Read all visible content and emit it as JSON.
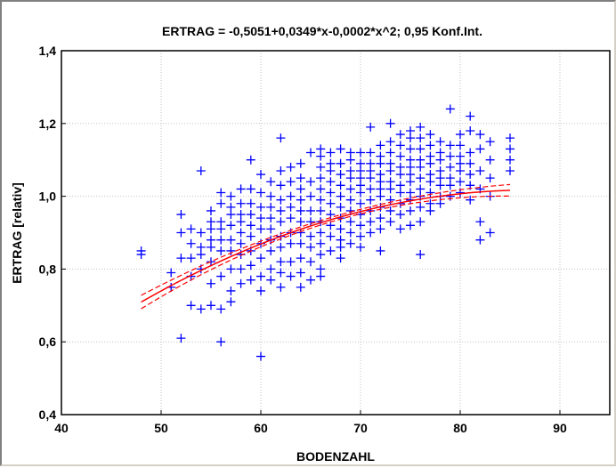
{
  "chart_data": {
    "type": "scatter",
    "title": "ERTRAG = -0,5051+0,0349*x-0,0002*x^2; 0,95 Konf.Int.",
    "xlabel": "BODENZAHL",
    "ylabel": "ERTRAG [relativ]",
    "xlim": [
      40,
      95
    ],
    "ylim": [
      0.4,
      1.4
    ],
    "x_ticks": [
      40,
      50,
      60,
      70,
      80,
      90
    ],
    "x_tick_labels": [
      "40",
      "50",
      "60",
      "70",
      "80",
      "90"
    ],
    "y_ticks": [
      0.4,
      0.6,
      0.8,
      1.0,
      1.2,
      1.4
    ],
    "y_tick_labels": [
      "0,4",
      "0,6",
      "0,8",
      "1,0",
      "1,2",
      "1,4"
    ],
    "grid": true,
    "marker": "+",
    "colors": {
      "points": "#0000ff",
      "fit": "#ff0000",
      "grid": "#c0c0c0"
    },
    "series": [
      {
        "kind": "points",
        "x": [
          48,
          48,
          51,
          51,
          52,
          52,
          52,
          52,
          53,
          53,
          53,
          53,
          53,
          54,
          54,
          54,
          54,
          54,
          54,
          55,
          55,
          55,
          55,
          55,
          55,
          55,
          55,
          56,
          56,
          56,
          56,
          56,
          56,
          56,
          56,
          56,
          57,
          57,
          57,
          57,
          57,
          57,
          57,
          57,
          57,
          58,
          58,
          58,
          58,
          58,
          58,
          58,
          58,
          58,
          59,
          59,
          59,
          59,
          59,
          59,
          59,
          59,
          59,
          60,
          60,
          60,
          60,
          60,
          60,
          60,
          60,
          60,
          60,
          61,
          61,
          61,
          61,
          61,
          61,
          61,
          61,
          61,
          62,
          62,
          62,
          62,
          62,
          62,
          62,
          62,
          62,
          62,
          62,
          63,
          63,
          63,
          63,
          63,
          63,
          63,
          63,
          63,
          64,
          64,
          64,
          64,
          64,
          64,
          64,
          64,
          64,
          64,
          64,
          65,
          65,
          65,
          65,
          65,
          65,
          65,
          65,
          65,
          66,
          66,
          66,
          66,
          66,
          66,
          66,
          66,
          66,
          66,
          66,
          66,
          66,
          67,
          67,
          67,
          67,
          67,
          67,
          67,
          67,
          67,
          67,
          68,
          68,
          68,
          68,
          68,
          68,
          68,
          68,
          68,
          68,
          68,
          69,
          69,
          69,
          69,
          69,
          69,
          69,
          69,
          69,
          69,
          70,
          70,
          70,
          70,
          70,
          70,
          70,
          70,
          70,
          70,
          70,
          71,
          71,
          71,
          71,
          71,
          71,
          71,
          71,
          71,
          71,
          72,
          72,
          72,
          72,
          72,
          72,
          72,
          72,
          72,
          72,
          72,
          73,
          73,
          73,
          73,
          73,
          73,
          73,
          73,
          73,
          73,
          74,
          74,
          74,
          74,
          74,
          74,
          74,
          74,
          74,
          74,
          75,
          75,
          75,
          75,
          75,
          75,
          75,
          75,
          75,
          75,
          75,
          76,
          76,
          76,
          76,
          76,
          76,
          76,
          76,
          76,
          76,
          76,
          77,
          77,
          77,
          77,
          77,
          77,
          77,
          77,
          77,
          78,
          78,
          78,
          78,
          78,
          78,
          78,
          78,
          79,
          79,
          79,
          79,
          79,
          79,
          79,
          80,
          80,
          80,
          80,
          80,
          80,
          80,
          81,
          81,
          81,
          81,
          81,
          81,
          81,
          82,
          82,
          82,
          82,
          82,
          82,
          83,
          83,
          83,
          83,
          83,
          85,
          85,
          85,
          85
        ],
        "y": [
          0.84,
          0.85,
          0.75,
          0.79,
          0.61,
          0.83,
          0.9,
          0.95,
          0.7,
          0.78,
          0.83,
          0.87,
          0.91,
          0.69,
          0.8,
          0.84,
          0.86,
          0.9,
          1.07,
          0.7,
          0.76,
          0.82,
          0.86,
          0.88,
          0.91,
          0.93,
          0.96,
          0.6,
          0.69,
          0.78,
          0.85,
          0.88,
          0.91,
          0.93,
          0.98,
          1.01,
          0.71,
          0.74,
          0.8,
          0.85,
          0.88,
          0.92,
          0.95,
          0.97,
          1.0,
          0.76,
          0.8,
          0.84,
          0.87,
          0.9,
          0.93,
          0.95,
          0.98,
          1.02,
          0.77,
          0.81,
          0.85,
          0.89,
          0.92,
          0.95,
          0.98,
          1.02,
          1.1,
          0.56,
          0.74,
          0.78,
          0.83,
          0.87,
          0.91,
          0.94,
          0.97,
          1.01,
          1.06,
          0.77,
          0.8,
          0.85,
          0.88,
          0.91,
          0.94,
          0.97,
          1.0,
          1.04,
          0.75,
          0.79,
          0.82,
          0.86,
          0.89,
          0.93,
          0.96,
          0.99,
          1.03,
          1.07,
          1.16,
          0.78,
          0.82,
          0.87,
          0.9,
          0.94,
          0.97,
          1.0,
          1.04,
          1.08,
          0.75,
          0.79,
          0.83,
          0.87,
          0.9,
          0.93,
          0.96,
          0.99,
          1.02,
          1.05,
          1.09,
          0.77,
          0.82,
          0.86,
          0.89,
          0.93,
          0.96,
          1.0,
          1.04,
          1.12,
          0.78,
          0.8,
          0.84,
          0.87,
          0.9,
          0.93,
          0.96,
          0.99,
          1.02,
          1.05,
          1.08,
          1.11,
          1.13,
          0.85,
          0.89,
          0.92,
          0.95,
          0.98,
          1.01,
          1.04,
          1.07,
          1.09,
          1.12,
          0.83,
          0.86,
          0.88,
          0.91,
          0.94,
          0.97,
          1.0,
          1.03,
          1.06,
          1.09,
          1.13,
          0.87,
          0.9,
          0.93,
          0.96,
          0.99,
          1.02,
          1.05,
          1.07,
          1.1,
          1.12,
          0.86,
          0.89,
          0.92,
          0.95,
          0.98,
          1.01,
          1.03,
          1.05,
          1.07,
          1.09,
          1.12,
          0.9,
          0.93,
          0.96,
          0.99,
          1.02,
          1.05,
          1.07,
          1.09,
          1.12,
          1.19,
          0.85,
          0.91,
          0.94,
          0.97,
          1.0,
          1.02,
          1.04,
          1.06,
          1.09,
          1.11,
          1.14,
          0.93,
          0.96,
          0.99,
          1.02,
          1.04,
          1.07,
          1.09,
          1.12,
          1.15,
          1.2,
          0.91,
          0.95,
          0.98,
          1.01,
          1.03,
          1.06,
          1.08,
          1.11,
          1.14,
          1.17,
          0.92,
          0.96,
          0.99,
          1.01,
          1.04,
          1.06,
          1.08,
          1.1,
          1.13,
          1.16,
          1.18,
          0.84,
          0.93,
          0.97,
          1.0,
          1.02,
          1.05,
          1.08,
          1.1,
          1.13,
          1.16,
          1.19,
          0.96,
          0.98,
          1.01,
          1.04,
          1.06,
          1.09,
          1.11,
          1.14,
          1.17,
          0.98,
          1.0,
          1.03,
          1.05,
          1.07,
          1.1,
          1.12,
          1.15,
          1.0,
          1.03,
          1.05,
          1.08,
          1.11,
          1.14,
          1.24,
          1.01,
          1.04,
          1.07,
          1.09,
          1.11,
          1.14,
          1.17,
          0.99,
          1.03,
          1.06,
          1.09,
          1.12,
          1.18,
          1.22,
          0.88,
          0.93,
          1.02,
          1.07,
          1.13,
          1.17,
          0.9,
          1.0,
          1.05,
          1.1,
          1.15,
          1.07,
          1.1,
          1.13,
          1.16
        ]
      },
      {
        "kind": "fit",
        "equation": [
          -0.5051,
          0.0349,
          -0.0002
        ],
        "x_range": [
          48,
          85
        ]
      },
      {
        "kind": "confidence_band",
        "level": 0.95
      }
    ]
  }
}
